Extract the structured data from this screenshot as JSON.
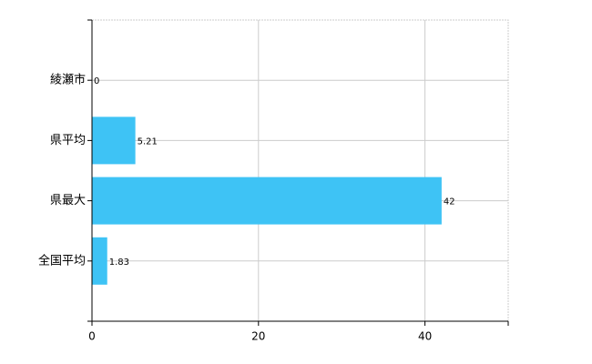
{
  "chart_data": {
    "type": "bar",
    "orientation": "horizontal",
    "categories": [
      "綾瀬市",
      "県平均",
      "県最大",
      "全国平均"
    ],
    "values": [
      0,
      5.21,
      42,
      1.83
    ],
    "color": "#3ec3f5",
    "xlim": [
      0,
      50
    ],
    "xticks": [
      0,
      20,
      40
    ],
    "grid": true
  }
}
